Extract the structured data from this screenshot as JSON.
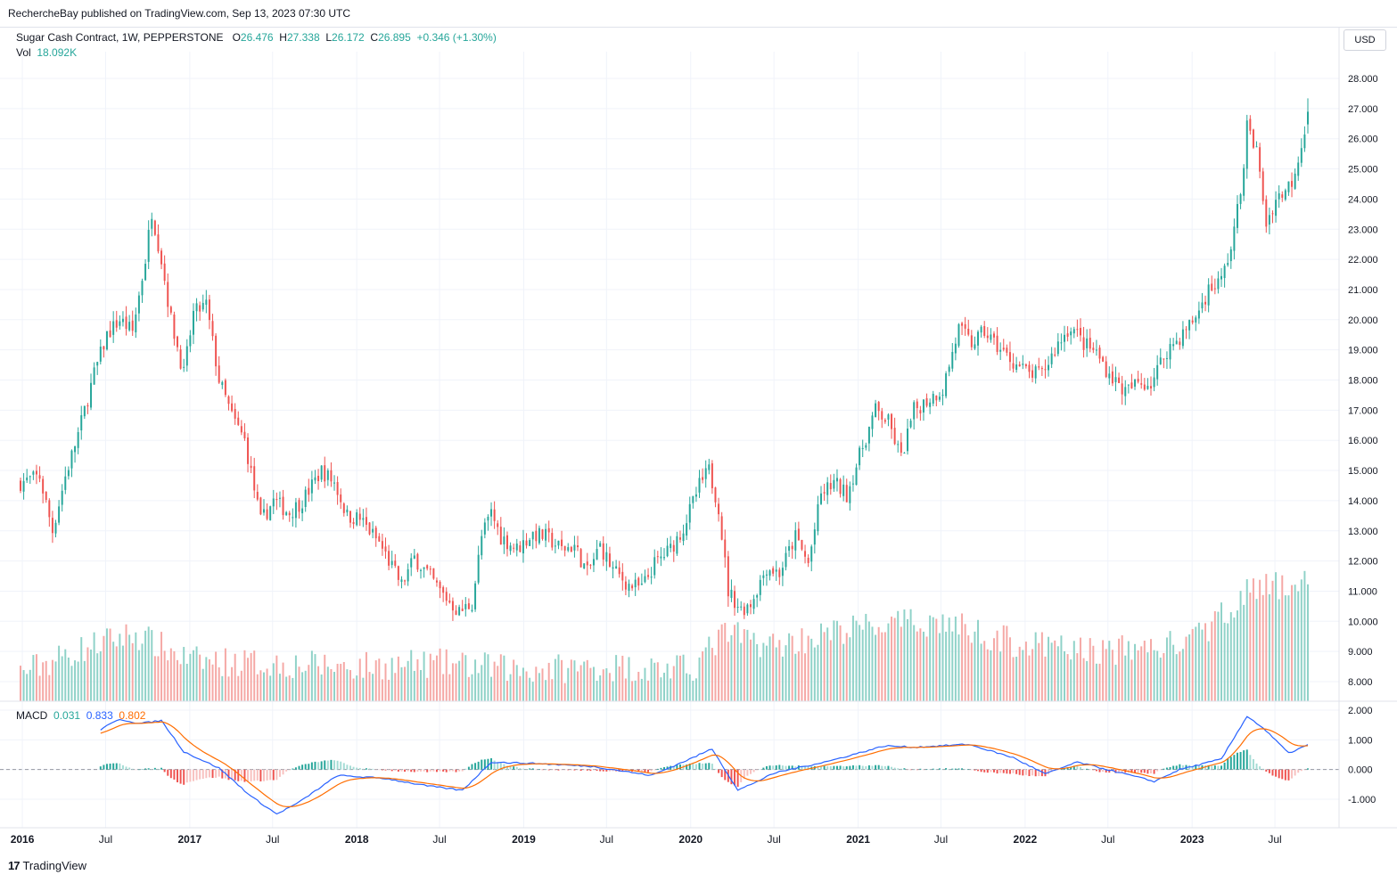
{
  "header": {
    "published": "RechercheBay published on TradingView.com, Sep 13, 2023 07:30 UTC"
  },
  "legend": {
    "symbol": "Sugar Cash Contract, 1W, PEPPERSTONE",
    "o_label": "O",
    "o_value": "26.476",
    "h_label": "H",
    "h_value": "27.338",
    "l_label": "L",
    "l_value": "26.172",
    "c_label": "C",
    "c_value": "26.895",
    "change": "+0.346 (+1.30%)",
    "vol_label": "Vol",
    "vol_value": "18.092K"
  },
  "macd_legend": {
    "label": "MACD",
    "hist": "0.031",
    "macd": "0.833",
    "signal": "0.802"
  },
  "currency_button": "USD",
  "footer": {
    "logo": "17",
    "brand": "TradingView"
  },
  "colors": {
    "up": "#26a69a",
    "down": "#ef5350",
    "vol_up": "#8fd2c8",
    "vol_down": "#f5a8a5",
    "macd": "#2962ff",
    "signal": "#ff6d00",
    "hist_up": "#26a69a",
    "hist_up_light": "#a5dcd5",
    "hist_down": "#ef5350",
    "hist_down_light": "#f8c1bf",
    "grid": "#f0f3fa"
  },
  "chart_data": {
    "type": "candlestick",
    "title": "Sugar Cash Contract, 1W, PEPPERSTONE",
    "price_axis": {
      "ylim": [
        7.4,
        28.8
      ],
      "ticks": [
        "28.000",
        "27.000",
        "26.000",
        "25.000",
        "24.000",
        "23.000",
        "22.000",
        "21.000",
        "20.000",
        "19.000",
        "18.000",
        "17.000",
        "16.000",
        "15.000",
        "14.000",
        "13.000",
        "12.000",
        "11.000",
        "10.000",
        "9.000",
        "8.000"
      ]
    },
    "macd_axis": {
      "ylim": [
        -2.0,
        2.2
      ],
      "ticks": [
        "2.000",
        "1.000",
        "0.000",
        "-1.000"
      ]
    },
    "time_axis": {
      "ticks": [
        "2016",
        "Jul",
        "2017",
        "Jul",
        "2018",
        "Jul",
        "2019",
        "Jul",
        "2020",
        "Jul",
        "2021",
        "Jul",
        "2022",
        "Jul",
        "2023",
        "Jul"
      ],
      "start": "2015-12-28",
      "end": "2023-09-11"
    },
    "price_anchors": [
      [
        "2015-12-28",
        14.6
      ],
      [
        "2016-02-08",
        14.8
      ],
      [
        "2016-03-07",
        13.0
      ],
      [
        "2016-04-04",
        14.8
      ],
      [
        "2016-05-02",
        16.2
      ],
      [
        "2016-06-06",
        18.2
      ],
      [
        "2016-07-04",
        19.5
      ],
      [
        "2016-08-01",
        20.0
      ],
      [
        "2016-08-29",
        19.6
      ],
      [
        "2016-09-26",
        22.0
      ],
      [
        "2016-10-10",
        23.6
      ],
      [
        "2016-10-31",
        22.0
      ],
      [
        "2016-11-21",
        20.0
      ],
      [
        "2016-12-19",
        18.2
      ],
      [
        "2017-01-09",
        20.2
      ],
      [
        "2017-02-06",
        20.5
      ],
      [
        "2017-03-06",
        18.0
      ],
      [
        "2017-04-03",
        16.8
      ],
      [
        "2017-05-01",
        16.0
      ],
      [
        "2017-06-05",
        13.3
      ],
      [
        "2017-07-03",
        14.0
      ],
      [
        "2017-08-07",
        13.6
      ],
      [
        "2017-09-04",
        14.0
      ],
      [
        "2017-10-16",
        15.0
      ],
      [
        "2017-11-13",
        14.6
      ],
      [
        "2017-12-11",
        13.5
      ],
      [
        "2018-01-08",
        13.4
      ],
      [
        "2018-02-19",
        12.6
      ],
      [
        "2018-03-19",
        11.8
      ],
      [
        "2018-04-09",
        11.2
      ],
      [
        "2018-05-07",
        12.1
      ],
      [
        "2018-06-04",
        11.6
      ],
      [
        "2018-07-02",
        11.0
      ],
      [
        "2018-08-13",
        10.3
      ],
      [
        "2018-09-10",
        10.6
      ],
      [
        "2018-10-01",
        12.8
      ],
      [
        "2018-10-22",
        13.6
      ],
      [
        "2018-11-12",
        12.8
      ],
      [
        "2018-12-17",
        12.4
      ],
      [
        "2019-01-21",
        12.9
      ],
      [
        "2019-02-18",
        12.8
      ],
      [
        "2019-03-25",
        12.4
      ],
      [
        "2019-04-22",
        12.5
      ],
      [
        "2019-05-20",
        11.6
      ],
      [
        "2019-06-17",
        12.5
      ],
      [
        "2019-07-15",
        11.7
      ],
      [
        "2019-08-19",
        11.2
      ],
      [
        "2019-09-16",
        11.1
      ],
      [
        "2019-10-14",
        11.9
      ],
      [
        "2019-11-18",
        12.4
      ],
      [
        "2019-12-16",
        13.1
      ],
      [
        "2020-01-20",
        14.5
      ],
      [
        "2020-02-10",
        15.0
      ],
      [
        "2020-03-02",
        13.8
      ],
      [
        "2020-03-23",
        11.0
      ],
      [
        "2020-04-20",
        10.4
      ],
      [
        "2020-05-11",
        10.6
      ],
      [
        "2020-06-15",
        11.8
      ],
      [
        "2020-07-13",
        11.6
      ],
      [
        "2020-08-17",
        12.8
      ],
      [
        "2020-09-14",
        11.9
      ],
      [
        "2020-10-12",
        14.2
      ],
      [
        "2020-11-09",
        14.6
      ],
      [
        "2020-12-07",
        14.2
      ],
      [
        "2021-01-11",
        15.8
      ],
      [
        "2021-02-08",
        17.0
      ],
      [
        "2021-03-08",
        16.6
      ],
      [
        "2021-04-05",
        15.4
      ],
      [
        "2021-05-03",
        17.0
      ],
      [
        "2021-06-07",
        17.4
      ],
      [
        "2021-07-05",
        17.7
      ],
      [
        "2021-08-09",
        19.7
      ],
      [
        "2021-09-06",
        19.2
      ],
      [
        "2021-10-04",
        19.6
      ],
      [
        "2021-11-08",
        19.0
      ],
      [
        "2021-12-06",
        18.6
      ],
      [
        "2022-01-10",
        18.2
      ],
      [
        "2022-02-07",
        18.2
      ],
      [
        "2022-03-14",
        19.2
      ],
      [
        "2022-04-11",
        19.8
      ],
      [
        "2022-05-09",
        19.2
      ],
      [
        "2022-06-06",
        18.9
      ],
      [
        "2022-07-04",
        18.2
      ],
      [
        "2022-08-08",
        17.6
      ],
      [
        "2022-09-05",
        17.9
      ],
      [
        "2022-10-03",
        17.9
      ],
      [
        "2022-11-07",
        19.0
      ],
      [
        "2022-12-05",
        19.4
      ],
      [
        "2023-01-09",
        20.1
      ],
      [
        "2023-02-06",
        21.0
      ],
      [
        "2023-03-06",
        21.3
      ],
      [
        "2023-03-27",
        22.4
      ],
      [
        "2023-04-17",
        24.2
      ],
      [
        "2023-05-01",
        26.4
      ],
      [
        "2023-05-22",
        25.6
      ],
      [
        "2023-06-12",
        23.2
      ],
      [
        "2023-07-03",
        24.0
      ],
      [
        "2023-07-24",
        24.3
      ],
      [
        "2023-08-07",
        24.6
      ],
      [
        "2023-08-28",
        25.8
      ],
      [
        "2023-09-11",
        26.9
      ]
    ],
    "volume_anchors": [
      [
        "2015-12-28",
        8.3
      ],
      [
        "2016-06-01",
        9.2
      ],
      [
        "2016-09-01",
        9.6
      ],
      [
        "2017-01-01",
        8.7
      ],
      [
        "2017-07-01",
        8.6
      ],
      [
        "2018-01-01",
        8.5
      ],
      [
        "2018-07-01",
        8.6
      ],
      [
        "2019-01-01",
        8.4
      ],
      [
        "2019-07-01",
        8.5
      ],
      [
        "2020-01-01",
        8.4
      ],
      [
        "2020-03-15",
        9.6
      ],
      [
        "2020-07-01",
        9.2
      ],
      [
        "2021-01-01",
        9.8
      ],
      [
        "2021-07-01",
        10.0
      ],
      [
        "2022-01-01",
        9.2
      ],
      [
        "2022-07-01",
        9.0
      ],
      [
        "2023-01-01",
        9.3
      ],
      [
        "2023-05-01",
        11.0
      ],
      [
        "2023-09-11",
        11.3
      ]
    ],
    "macd_anchors": [
      [
        "2016-06-20",
        1.35
      ],
      [
        "2016-08-01",
        1.7
      ],
      [
        "2016-09-12",
        1.55
      ],
      [
        "2016-10-31",
        1.65
      ],
      [
        "2016-12-19",
        0.6
      ],
      [
        "2017-03-06",
        0.05
      ],
      [
        "2017-05-15",
        -0.9
      ],
      [
        "2017-07-10",
        -1.5
      ],
      [
        "2017-08-28",
        -1.1
      ],
      [
        "2017-11-20",
        -0.2
      ],
      [
        "2018-03-05",
        -0.3
      ],
      [
        "2018-06-04",
        -0.55
      ],
      [
        "2018-08-20",
        -0.7
      ],
      [
        "2018-10-22",
        0.25
      ],
      [
        "2019-02-04",
        0.2
      ],
      [
        "2019-06-03",
        0.1
      ],
      [
        "2019-10-07",
        -0.2
      ],
      [
        "2020-01-06",
        0.4
      ],
      [
        "2020-02-17",
        0.7
      ],
      [
        "2020-04-13",
        -0.7
      ],
      [
        "2020-07-06",
        -0.1
      ],
      [
        "2020-11-02",
        0.3
      ],
      [
        "2021-03-01",
        0.8
      ],
      [
        "2021-05-03",
        0.75
      ],
      [
        "2021-08-30",
        0.85
      ],
      [
        "2021-12-06",
        0.4
      ],
      [
        "2022-02-14",
        -0.15
      ],
      [
        "2022-04-25",
        0.25
      ],
      [
        "2022-08-08",
        -0.15
      ],
      [
        "2022-10-10",
        -0.4
      ],
      [
        "2022-12-05",
        0.0
      ],
      [
        "2023-03-06",
        0.35
      ],
      [
        "2023-05-01",
        1.8
      ],
      [
        "2023-06-05",
        1.4
      ],
      [
        "2023-07-31",
        0.55
      ],
      [
        "2023-09-11",
        0.83
      ]
    ]
  }
}
